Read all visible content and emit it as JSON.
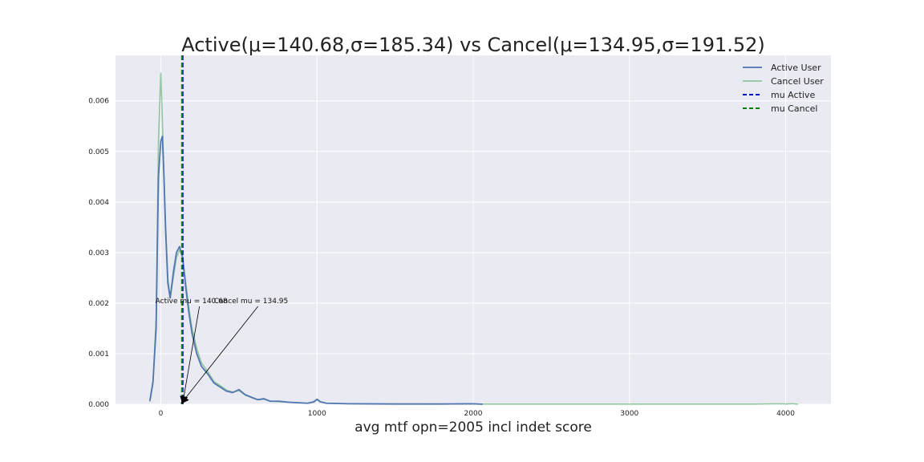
{
  "chart_data": {
    "type": "line",
    "title": "Active(μ=140.68,σ=185.34) vs Cancel(μ=134.95,σ=191.52)",
    "xlabel": "avg mtf opn=2005 incl indet score",
    "ylabel": "",
    "xlim": [
      -290,
      4290
    ],
    "ylim": [
      0,
      0.0069
    ],
    "grid": true,
    "legend_position": "top-right",
    "x_ticks": [
      0,
      1000,
      2000,
      3000,
      4000
    ],
    "x_tick_labels": [
      "0",
      "1000",
      "2000",
      "3000",
      "4000"
    ],
    "y_ticks": [
      0,
      0.001,
      0.002,
      0.003,
      0.004,
      0.005,
      0.006
    ],
    "y_tick_labels": [
      "0.000",
      "0.001",
      "0.002",
      "0.003",
      "0.004",
      "0.005",
      "0.006"
    ],
    "series": [
      {
        "name": "Active User",
        "color": "#4c72b0",
        "x": [
          -70,
          -50,
          -30,
          -15,
          0,
          10,
          20,
          30,
          45,
          60,
          80,
          100,
          120,
          140,
          160,
          180,
          200,
          230,
          260,
          300,
          340,
          380,
          420,
          460,
          500,
          540,
          580,
          620,
          660,
          700,
          760,
          820,
          880,
          940,
          980,
          1000,
          1020,
          1060,
          1200,
          1500,
          1800,
          2000,
          2060
        ],
        "y": [
          7e-05,
          0.00045,
          0.0015,
          0.0045,
          0.0052,
          0.0053,
          0.0045,
          0.0035,
          0.0024,
          0.0021,
          0.0026,
          0.003,
          0.00312,
          0.0029,
          0.0023,
          0.0018,
          0.0014,
          0.001,
          0.00075,
          0.0006,
          0.00042,
          0.00034,
          0.00026,
          0.00023,
          0.00029,
          0.00019,
          0.00014,
          9e-05,
          0.00011,
          6e-05,
          6e-05,
          4e-05,
          3e-05,
          2e-05,
          5e-05,
          0.0001,
          5e-05,
          2e-05,
          1e-05,
          5e-06,
          5e-06,
          1e-05,
          0.0
        ]
      },
      {
        "name": "Cancel User",
        "color": "#55a868",
        "x": [
          -70,
          -50,
          -30,
          -15,
          0,
          10,
          20,
          30,
          45,
          60,
          80,
          100,
          120,
          140,
          160,
          180,
          200,
          230,
          260,
          300,
          340,
          380,
          420,
          460,
          500,
          540,
          580,
          620,
          660,
          700,
          760,
          820,
          880,
          940,
          980,
          1000,
          1020,
          1060,
          1200,
          1500,
          1800,
          2000,
          2100,
          3000,
          3800,
          3960,
          4000,
          4040,
          4080
        ],
        "y": [
          5e-05,
          0.0004,
          0.0017,
          0.0052,
          0.00655,
          0.0056,
          0.0046,
          0.0036,
          0.0025,
          0.0021,
          0.0025,
          0.0029,
          0.00305,
          0.0029,
          0.0024,
          0.0019,
          0.0015,
          0.0011,
          0.00082,
          0.00065,
          0.00045,
          0.00037,
          0.00028,
          0.00024,
          0.00027,
          0.00018,
          0.00013,
          9e-05,
          0.0001,
          6e-05,
          5e-05,
          4e-05,
          3e-05,
          2e-05,
          4e-05,
          9e-05,
          5e-05,
          2e-05,
          1e-05,
          5e-06,
          4e-06,
          4e-06,
          3e-06,
          3e-06,
          3e-06,
          1e-05,
          5e-06,
          1.2e-05,
          0.0
        ]
      }
    ],
    "vlines": [
      {
        "name": "mu Active",
        "x": 140.68,
        "color": "#0000cc",
        "style": "dashed"
      },
      {
        "name": "mu Cancel",
        "x": 134.95,
        "color": "#008000",
        "style": "dashed"
      }
    ],
    "annotations": [
      {
        "text": "Active mu = 140.68",
        "x": -35,
        "y": 0.002,
        "arrow_to_x": 140.68,
        "arrow_to_y": 0.0
      },
      {
        "text": "Cancel mu = 134.95",
        "x": 340,
        "y": 0.002,
        "arrow_to_x": 134.95,
        "arrow_to_y": 0.0
      }
    ],
    "legend": [
      {
        "label": "Active User",
        "color": "#4c72b0",
        "style": "solid"
      },
      {
        "label": "Cancel User",
        "color": "#55a868",
        "style": "solid"
      },
      {
        "label": "mu Active",
        "color": "#0000cc",
        "style": "dashed"
      },
      {
        "label": "mu Cancel",
        "color": "#008000",
        "style": "dashed"
      }
    ]
  }
}
